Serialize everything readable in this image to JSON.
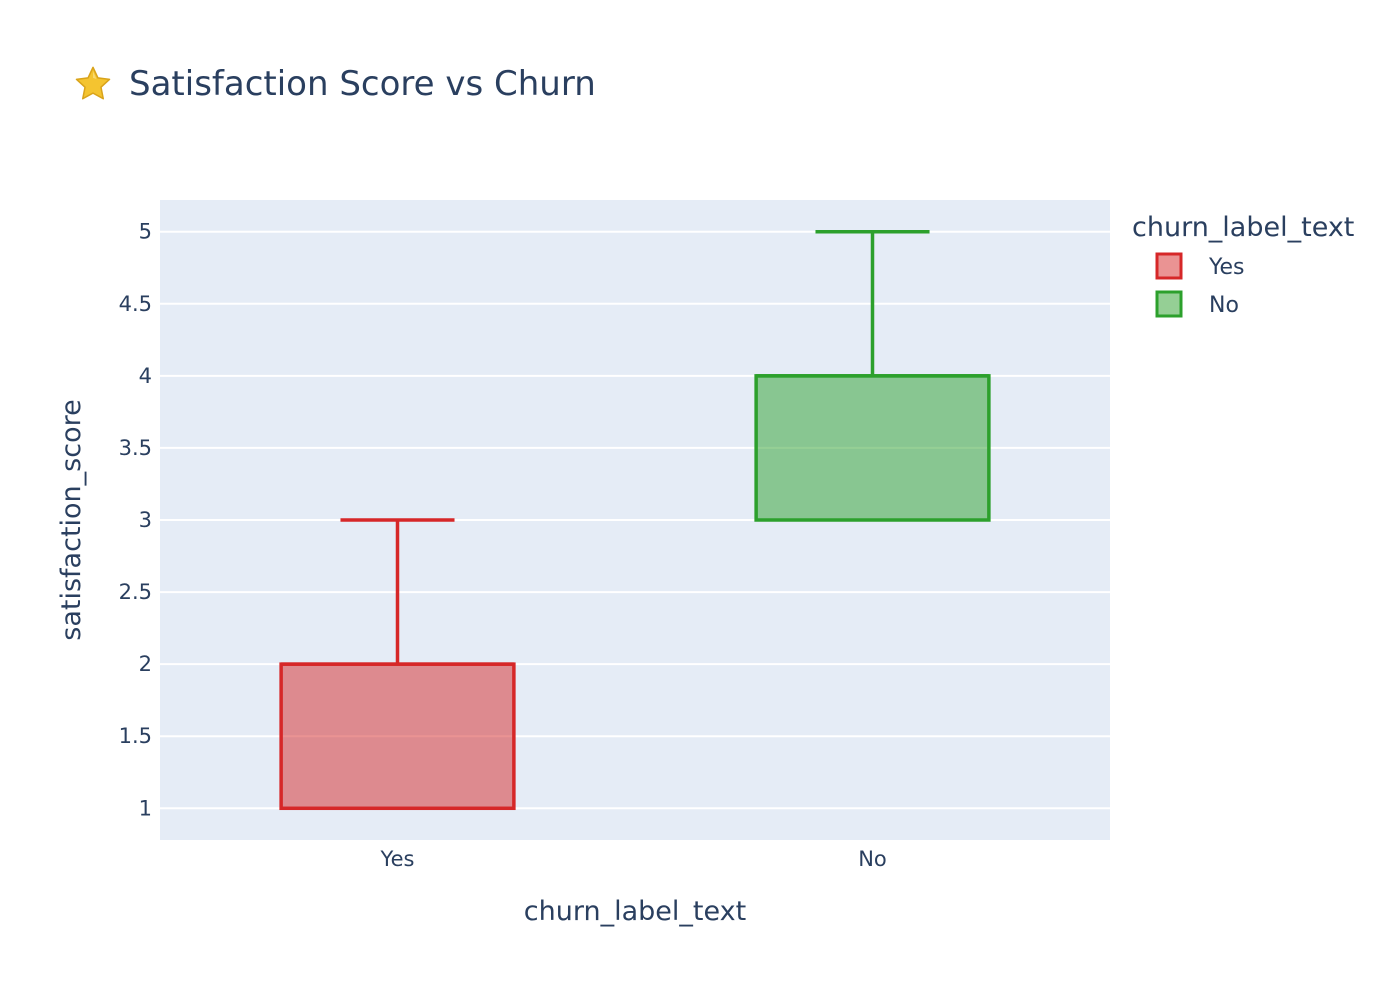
{
  "title": "Satisfaction Score vs Churn",
  "title_icon": "star-icon",
  "chart_data": {
    "type": "box",
    "title": "Satisfaction Score vs Churn",
    "xlabel": "churn_label_text",
    "ylabel": "satisfaction_score",
    "categories": [
      "Yes",
      "No"
    ],
    "ylim": [
      0.78,
      5.22
    ],
    "yticks": [
      1,
      1.5,
      2,
      2.5,
      3,
      3.5,
      4,
      4.5,
      5
    ],
    "ytick_labels": [
      "1",
      "1.5",
      "2",
      "2.5",
      "3",
      "3.5",
      "4",
      "4.5",
      "5"
    ],
    "grid": true,
    "legend": {
      "title": "churn_label_text",
      "placement": "right"
    },
    "series": [
      {
        "name": "Yes",
        "category": "Yes",
        "min": 1,
        "q1": 1,
        "median": 2,
        "q3": 2,
        "max": 3,
        "color": "#d62728"
      },
      {
        "name": "No",
        "category": "No",
        "min": 3,
        "q1": 3,
        "median": 4,
        "q3": 4,
        "max": 5,
        "color": "#2ca02c"
      }
    ]
  }
}
